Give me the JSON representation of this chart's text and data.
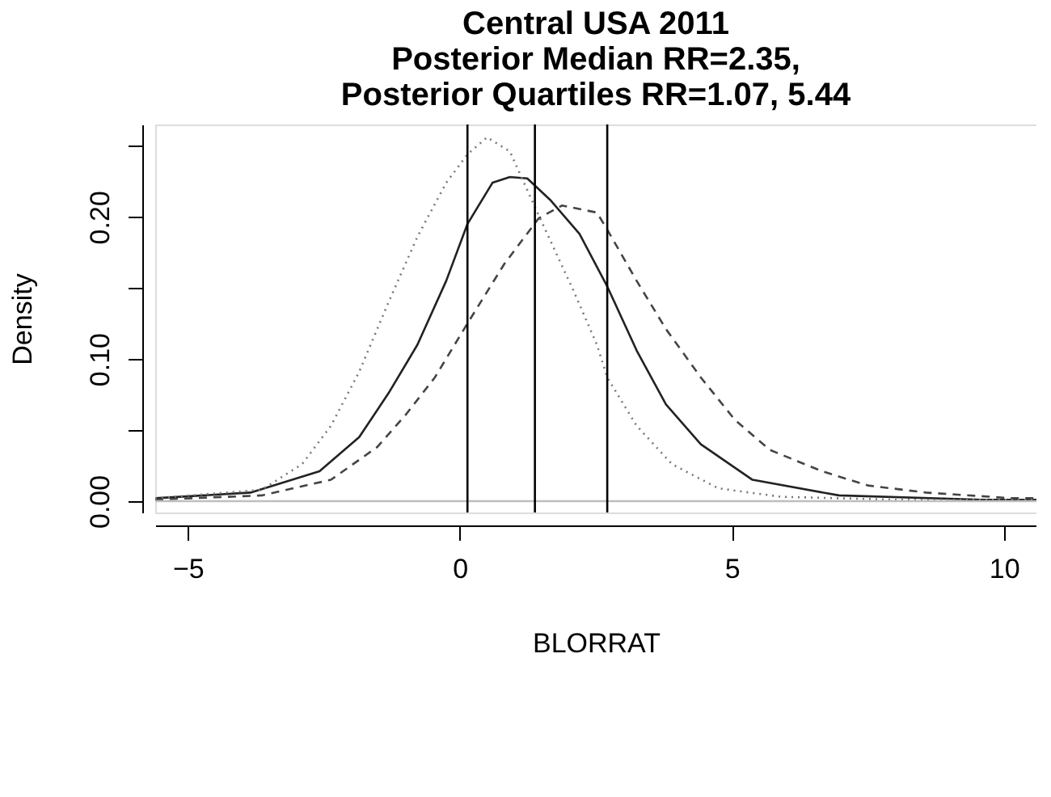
{
  "chart_data": {
    "type": "line",
    "title": "Central USA 2011\nPosterior Median RR=2.35,\nPosterior Quartiles RR=1.07, 5.44",
    "xlabel": "BLORRAT",
    "ylabel": "Density",
    "xlim": [
      -5.6,
      10.6
    ],
    "xticks": [
      -5,
      0,
      5,
      10
    ],
    "ylim": [
      -0.008,
      0.265
    ],
    "yticks": [
      {
        "value": 0.0,
        "label": "0.00"
      },
      {
        "value": 0.05,
        "label": null
      },
      {
        "value": 0.1,
        "label": "0.10"
      },
      {
        "value": 0.15,
        "label": null
      },
      {
        "value": 0.2,
        "label": "0.20"
      },
      {
        "value": 0.25,
        "label": null
      }
    ],
    "grid": false,
    "marker": "none",
    "series": [
      {
        "color": "#222222",
        "line_style": "solid",
        "x": [
          -5.6,
          -3.85,
          -2.58,
          -1.85,
          -1.31,
          -0.78,
          -0.25,
          0.14,
          0.6,
          0.92,
          1.24,
          1.66,
          2.2,
          2.71,
          3.25,
          3.79,
          4.43,
          5.38,
          6.97,
          9.6,
          10.6
        ],
        "values": [
          0.002,
          0.006,
          0.021,
          0.045,
          0.076,
          0.11,
          0.155,
          0.195,
          0.224,
          0.228,
          0.227,
          0.212,
          0.188,
          0.151,
          0.106,
          0.068,
          0.04,
          0.015,
          0.004,
          0.001,
          0.001
        ]
      },
      {
        "color": "#444444",
        "line_style": "dashed",
        "x": [
          -5.6,
          -3.64,
          -2.37,
          -1.52,
          -0.99,
          -0.46,
          0.14,
          0.82,
          1.45,
          1.88,
          2.52,
          2.71,
          3.25,
          3.79,
          4.43,
          5.06,
          5.7,
          6.66,
          7.5,
          8.57,
          10.16,
          10.6
        ],
        "values": [
          0.001,
          0.004,
          0.015,
          0.038,
          0.061,
          0.087,
          0.125,
          0.167,
          0.199,
          0.208,
          0.203,
          0.191,
          0.155,
          0.121,
          0.087,
          0.057,
          0.036,
          0.021,
          0.011,
          0.006,
          0.002,
          0.002
        ]
      },
      {
        "color": "#777777",
        "line_style": "dotted",
        "x": [
          -5.6,
          -3.64,
          -2.9,
          -2.37,
          -1.85,
          -1.31,
          -0.78,
          -0.25,
          0.14,
          0.5,
          0.92,
          1.45,
          2.09,
          2.52,
          2.71,
          3.25,
          3.9,
          4.75,
          5.91,
          8.0,
          10.6
        ],
        "values": [
          0.002,
          0.008,
          0.026,
          0.053,
          0.091,
          0.14,
          0.186,
          0.224,
          0.244,
          0.256,
          0.246,
          0.201,
          0.148,
          0.11,
          0.087,
          0.053,
          0.026,
          0.009,
          0.003,
          0.001,
          0.001
        ]
      }
    ],
    "ref_lines": [
      {
        "axis": "y",
        "value": 0,
        "color": "#bebebe"
      },
      {
        "axis": "x",
        "value": 0.14,
        "color": "#000000"
      },
      {
        "axis": "x",
        "value": 1.38,
        "color": "#000000"
      },
      {
        "axis": "x",
        "value": 2.71,
        "color": "#000000"
      }
    ]
  }
}
